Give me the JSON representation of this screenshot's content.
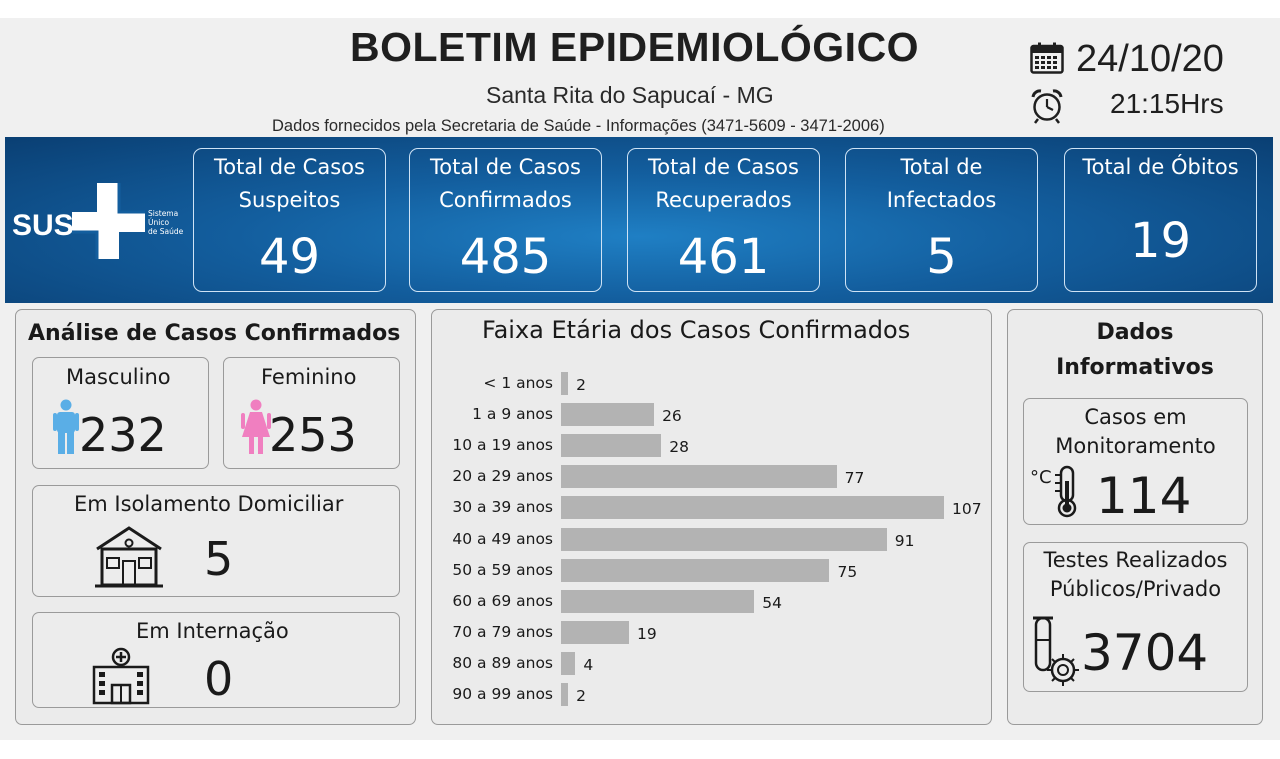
{
  "header": {
    "title": "BOLETIM EPIDEMIOLÓGICO",
    "subtitle": "Santa Rita do Sapucaí - MG",
    "source": "Dados fornecidos pela Secretaria de Saúde - Informações (3471-5609 - 3471-2006)",
    "date": "24/10/20",
    "time": "21:15Hrs",
    "date_icon": "calendar-icon",
    "time_icon": "alarm-clock-icon"
  },
  "logo": {
    "text": "SUS",
    "line1": "Sistema",
    "line2": "Único",
    "line3": "de Saúde"
  },
  "stats": [
    {
      "line1": "Total de Casos",
      "line2": "Suspeitos",
      "value": "49"
    },
    {
      "line1": "Total de Casos",
      "line2": "Confirmados",
      "value": "485"
    },
    {
      "line1": "Total de Casos",
      "line2": "Recuperados",
      "value": "461"
    },
    {
      "line1": "Total de",
      "line2": "Infectados",
      "value": "5"
    },
    {
      "line1": "Total de Óbitos",
      "line2": "",
      "value": "19"
    }
  ],
  "analysis": {
    "title": "Análise de Casos Confirmados",
    "male_label": "Masculino",
    "male_value": "232",
    "female_label": "Feminino",
    "female_value": "253",
    "isolation_label": "Em Isolamento Domiciliar",
    "isolation_value": "5",
    "hospital_label": "Em Internação",
    "hospital_value": "0"
  },
  "chart_data": {
    "type": "bar",
    "orientation": "horizontal",
    "title": "Faixa Etária dos Casos Confirmados",
    "categories": [
      "< 1 anos",
      "1 a 9 anos",
      "10 a 19 anos",
      "20 a 29 anos",
      "30 a 39 anos",
      "40 a 49 anos",
      "50 a 59 anos",
      "60 a 69 anos",
      "70 a 79 anos",
      "80 a 89 anos",
      "90 a 99 anos"
    ],
    "values": [
      2,
      26,
      28,
      77,
      107,
      91,
      75,
      54,
      19,
      4,
      2
    ],
    "data_labels": true,
    "grid": false,
    "bar_color": "#b3b3b3"
  },
  "info": {
    "title_line1": "Dados",
    "title_line2": "Informativos",
    "monitor_line1": "Casos em",
    "monitor_line2": "Monitoramento",
    "monitor_value": "114",
    "tests_line1": "Testes Realizados",
    "tests_line2": "Públicos/Privado",
    "tests_value": "3704"
  },
  "colors": {
    "banner": "#135e9e",
    "male": "#5aaee6",
    "female": "#f07fc0",
    "bar": "#b3b3b3"
  }
}
